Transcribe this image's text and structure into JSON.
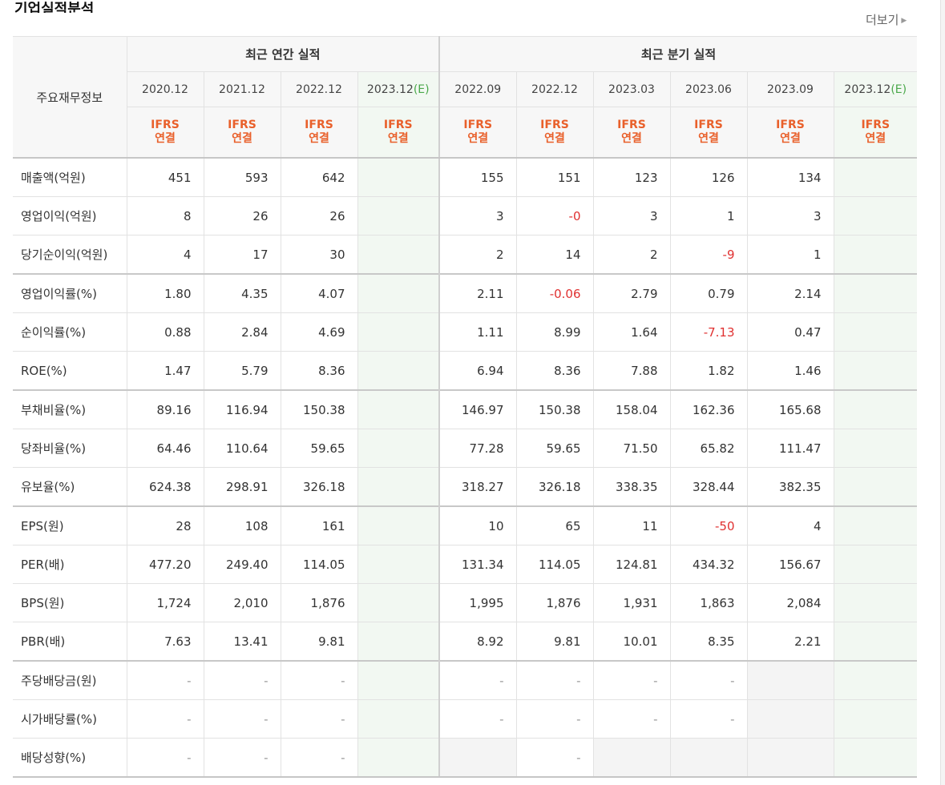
{
  "header": {
    "title": "기업실적분석",
    "more_label": "더보기"
  },
  "table": {
    "corner_label": "주요재무정보",
    "annual_group_label": "최근 연간 실적",
    "quarter_group_label": "최근 분기 실적",
    "ifrs_top": "IFRS",
    "ifrs_bottom": "연결",
    "periods": [
      {
        "date": "2020.12",
        "est": ""
      },
      {
        "date": "2021.12",
        "est": ""
      },
      {
        "date": "2022.12",
        "est": ""
      },
      {
        "date": "2023.12",
        "est": "(E)"
      },
      {
        "date": "2022.09",
        "est": ""
      },
      {
        "date": "2022.12",
        "est": ""
      },
      {
        "date": "2023.03",
        "est": ""
      },
      {
        "date": "2023.06",
        "est": ""
      },
      {
        "date": "2023.09",
        "est": ""
      },
      {
        "date": "2023.12",
        "est": "(E)"
      }
    ],
    "rows": [
      {
        "label": "매출액(억원)",
        "values": [
          "451",
          "593",
          "642",
          "",
          "155",
          "151",
          "123",
          "126",
          "134",
          ""
        ]
      },
      {
        "label": "영업이익(억원)",
        "values": [
          "8",
          "26",
          "26",
          "",
          "3",
          "-0",
          "3",
          "1",
          "3",
          ""
        ]
      },
      {
        "label": "당기순이익(억원)",
        "values": [
          "4",
          "17",
          "30",
          "",
          "2",
          "14",
          "2",
          "-9",
          "1",
          ""
        ]
      },
      {
        "label": "영업이익률(%)",
        "values": [
          "1.80",
          "4.35",
          "4.07",
          "",
          "2.11",
          "-0.06",
          "2.79",
          "0.79",
          "2.14",
          ""
        ]
      },
      {
        "label": "순이익률(%)",
        "values": [
          "0.88",
          "2.84",
          "4.69",
          "",
          "1.11",
          "8.99",
          "1.64",
          "-7.13",
          "0.47",
          ""
        ]
      },
      {
        "label": "ROE(%)",
        "values": [
          "1.47",
          "5.79",
          "8.36",
          "",
          "6.94",
          "8.36",
          "7.88",
          "1.82",
          "1.46",
          ""
        ]
      },
      {
        "label": "부채비율(%)",
        "values": [
          "89.16",
          "116.94",
          "150.38",
          "",
          "146.97",
          "150.38",
          "158.04",
          "162.36",
          "165.68",
          ""
        ]
      },
      {
        "label": "당좌비율(%)",
        "values": [
          "64.46",
          "110.64",
          "59.65",
          "",
          "77.28",
          "59.65",
          "71.50",
          "65.82",
          "111.47",
          ""
        ]
      },
      {
        "label": "유보율(%)",
        "values": [
          "624.38",
          "298.91",
          "326.18",
          "",
          "318.27",
          "326.18",
          "338.35",
          "328.44",
          "382.35",
          ""
        ]
      },
      {
        "label": "EPS(원)",
        "values": [
          "28",
          "108",
          "161",
          "",
          "10",
          "65",
          "11",
          "-50",
          "4",
          ""
        ]
      },
      {
        "label": "PER(배)",
        "values": [
          "477.20",
          "249.40",
          "114.05",
          "",
          "131.34",
          "114.05",
          "124.81",
          "434.32",
          "156.67",
          ""
        ]
      },
      {
        "label": "BPS(원)",
        "values": [
          "1,724",
          "2,010",
          "1,876",
          "",
          "1,995",
          "1,876",
          "1,931",
          "1,863",
          "2,084",
          ""
        ]
      },
      {
        "label": "PBR(배)",
        "values": [
          "7.63",
          "13.41",
          "9.81",
          "",
          "8.92",
          "9.81",
          "10.01",
          "8.35",
          "2.21",
          ""
        ]
      },
      {
        "label": "주당배당금(원)",
        "values": [
          "-",
          "-",
          "-",
          "",
          "-",
          "-",
          "-",
          "-",
          "",
          ""
        ]
      },
      {
        "label": "시가배당률(%)",
        "values": [
          "-",
          "-",
          "-",
          "",
          "-",
          "-",
          "-",
          "-",
          "",
          ""
        ]
      },
      {
        "label": "배당성향(%)",
        "values": [
          "-",
          "-",
          "-",
          "",
          "",
          "-",
          "",
          "",
          "",
          ""
        ]
      }
    ]
  }
}
